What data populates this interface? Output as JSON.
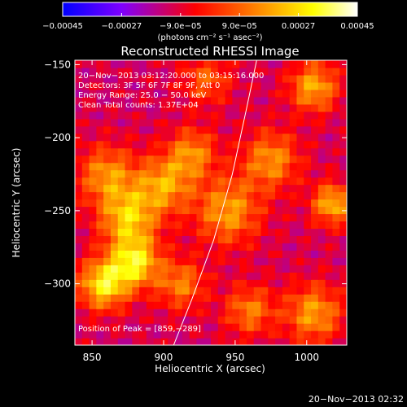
{
  "chart_data": {
    "type": "heatmap",
    "title": "Reconstructed RHESSI Image",
    "xlabel": "Heliocentric X (arcsec)",
    "ylabel": "Heliocentric Y (arcsec)",
    "xlim": [
      838,
      1028
    ],
    "ylim": [
      -342,
      -147
    ],
    "x_ticks": [
      850,
      900,
      950,
      1000
    ],
    "y_ticks": [
      -300,
      -250,
      -200,
      -150
    ],
    "x_tick_labels": [
      "850",
      "900",
      "950",
      "1000"
    ],
    "y_tick_labels": [
      "−300",
      "−250",
      "−200",
      "−150"
    ],
    "colorbar": {
      "range": [
        -0.00045,
        0.00045
      ],
      "tick_values": [
        -0.00045,
        -0.00027,
        -9e-05,
        9e-05,
        0.00027,
        0.00045
      ],
      "tick_labels": [
        "−0.00045",
        "−0.00027",
        "−9.0e−05",
        "9.0e−05",
        "0.00027",
        "0.00045"
      ],
      "unit_label": "(photons cm⁻² s⁻¹ asec⁻²)",
      "colors": [
        "#0000ff",
        "#7f00ff",
        "#ff0000",
        "#ff7f00",
        "#ffff00",
        "#ffffff"
      ]
    },
    "annotations": [
      "20−Nov−2013 03:12:20.000 to 03:15:16.000",
      "Detectors: 3F 5F 6F 7F 8F 9F, Att 0",
      "Energy Range: 25.0 − 50.0 keV",
      "Clean    Total counts: 1.37E+04"
    ],
    "peak_label": "Position of Peak = [859,−289]",
    "peak": [
      859,
      -289
    ],
    "limb_curve": {
      "x": [
        907,
        920,
        935,
        948,
        958,
        965
      ],
      "y": [
        -342,
        -310,
        -270,
        -225,
        -180,
        -147
      ]
    },
    "grid_layout": {
      "nx": 38,
      "ny": 39
    },
    "intensity_sources": [
      {
        "x": 858,
        "y": -300,
        "amp": 0.00042,
        "sigma": 12
      },
      {
        "x": 880,
        "y": -285,
        "amp": 0.0004,
        "sigma": 12
      },
      {
        "x": 875,
        "y": -255,
        "amp": 0.00035,
        "sigma": 14
      },
      {
        "x": 900,
        "y": -232,
        "amp": 0.0003,
        "sigma": 14
      },
      {
        "x": 860,
        "y": -225,
        "amp": 0.00028,
        "sigma": 14
      },
      {
        "x": 920,
        "y": -210,
        "amp": 0.00026,
        "sigma": 12
      },
      {
        "x": 945,
        "y": -250,
        "amp": 0.0003,
        "sigma": 16
      },
      {
        "x": 975,
        "y": -215,
        "amp": 0.00028,
        "sigma": 14
      },
      {
        "x": 1005,
        "y": -165,
        "amp": 0.00032,
        "sigma": 12
      },
      {
        "x": 1018,
        "y": -245,
        "amp": 0.00034,
        "sigma": 10
      },
      {
        "x": 1005,
        "y": -320,
        "amp": 0.0003,
        "sigma": 14
      },
      {
        "x": 960,
        "y": -318,
        "amp": 0.00025,
        "sigma": 12
      },
      {
        "x": 930,
        "y": -160,
        "amp": 0.0002,
        "sigma": 12
      },
      {
        "x": 912,
        "y": -300,
        "amp": 0.00025,
        "sigma": 12
      }
    ]
  },
  "footer": {
    "timestamp": "20−Nov−2013 02:32"
  }
}
